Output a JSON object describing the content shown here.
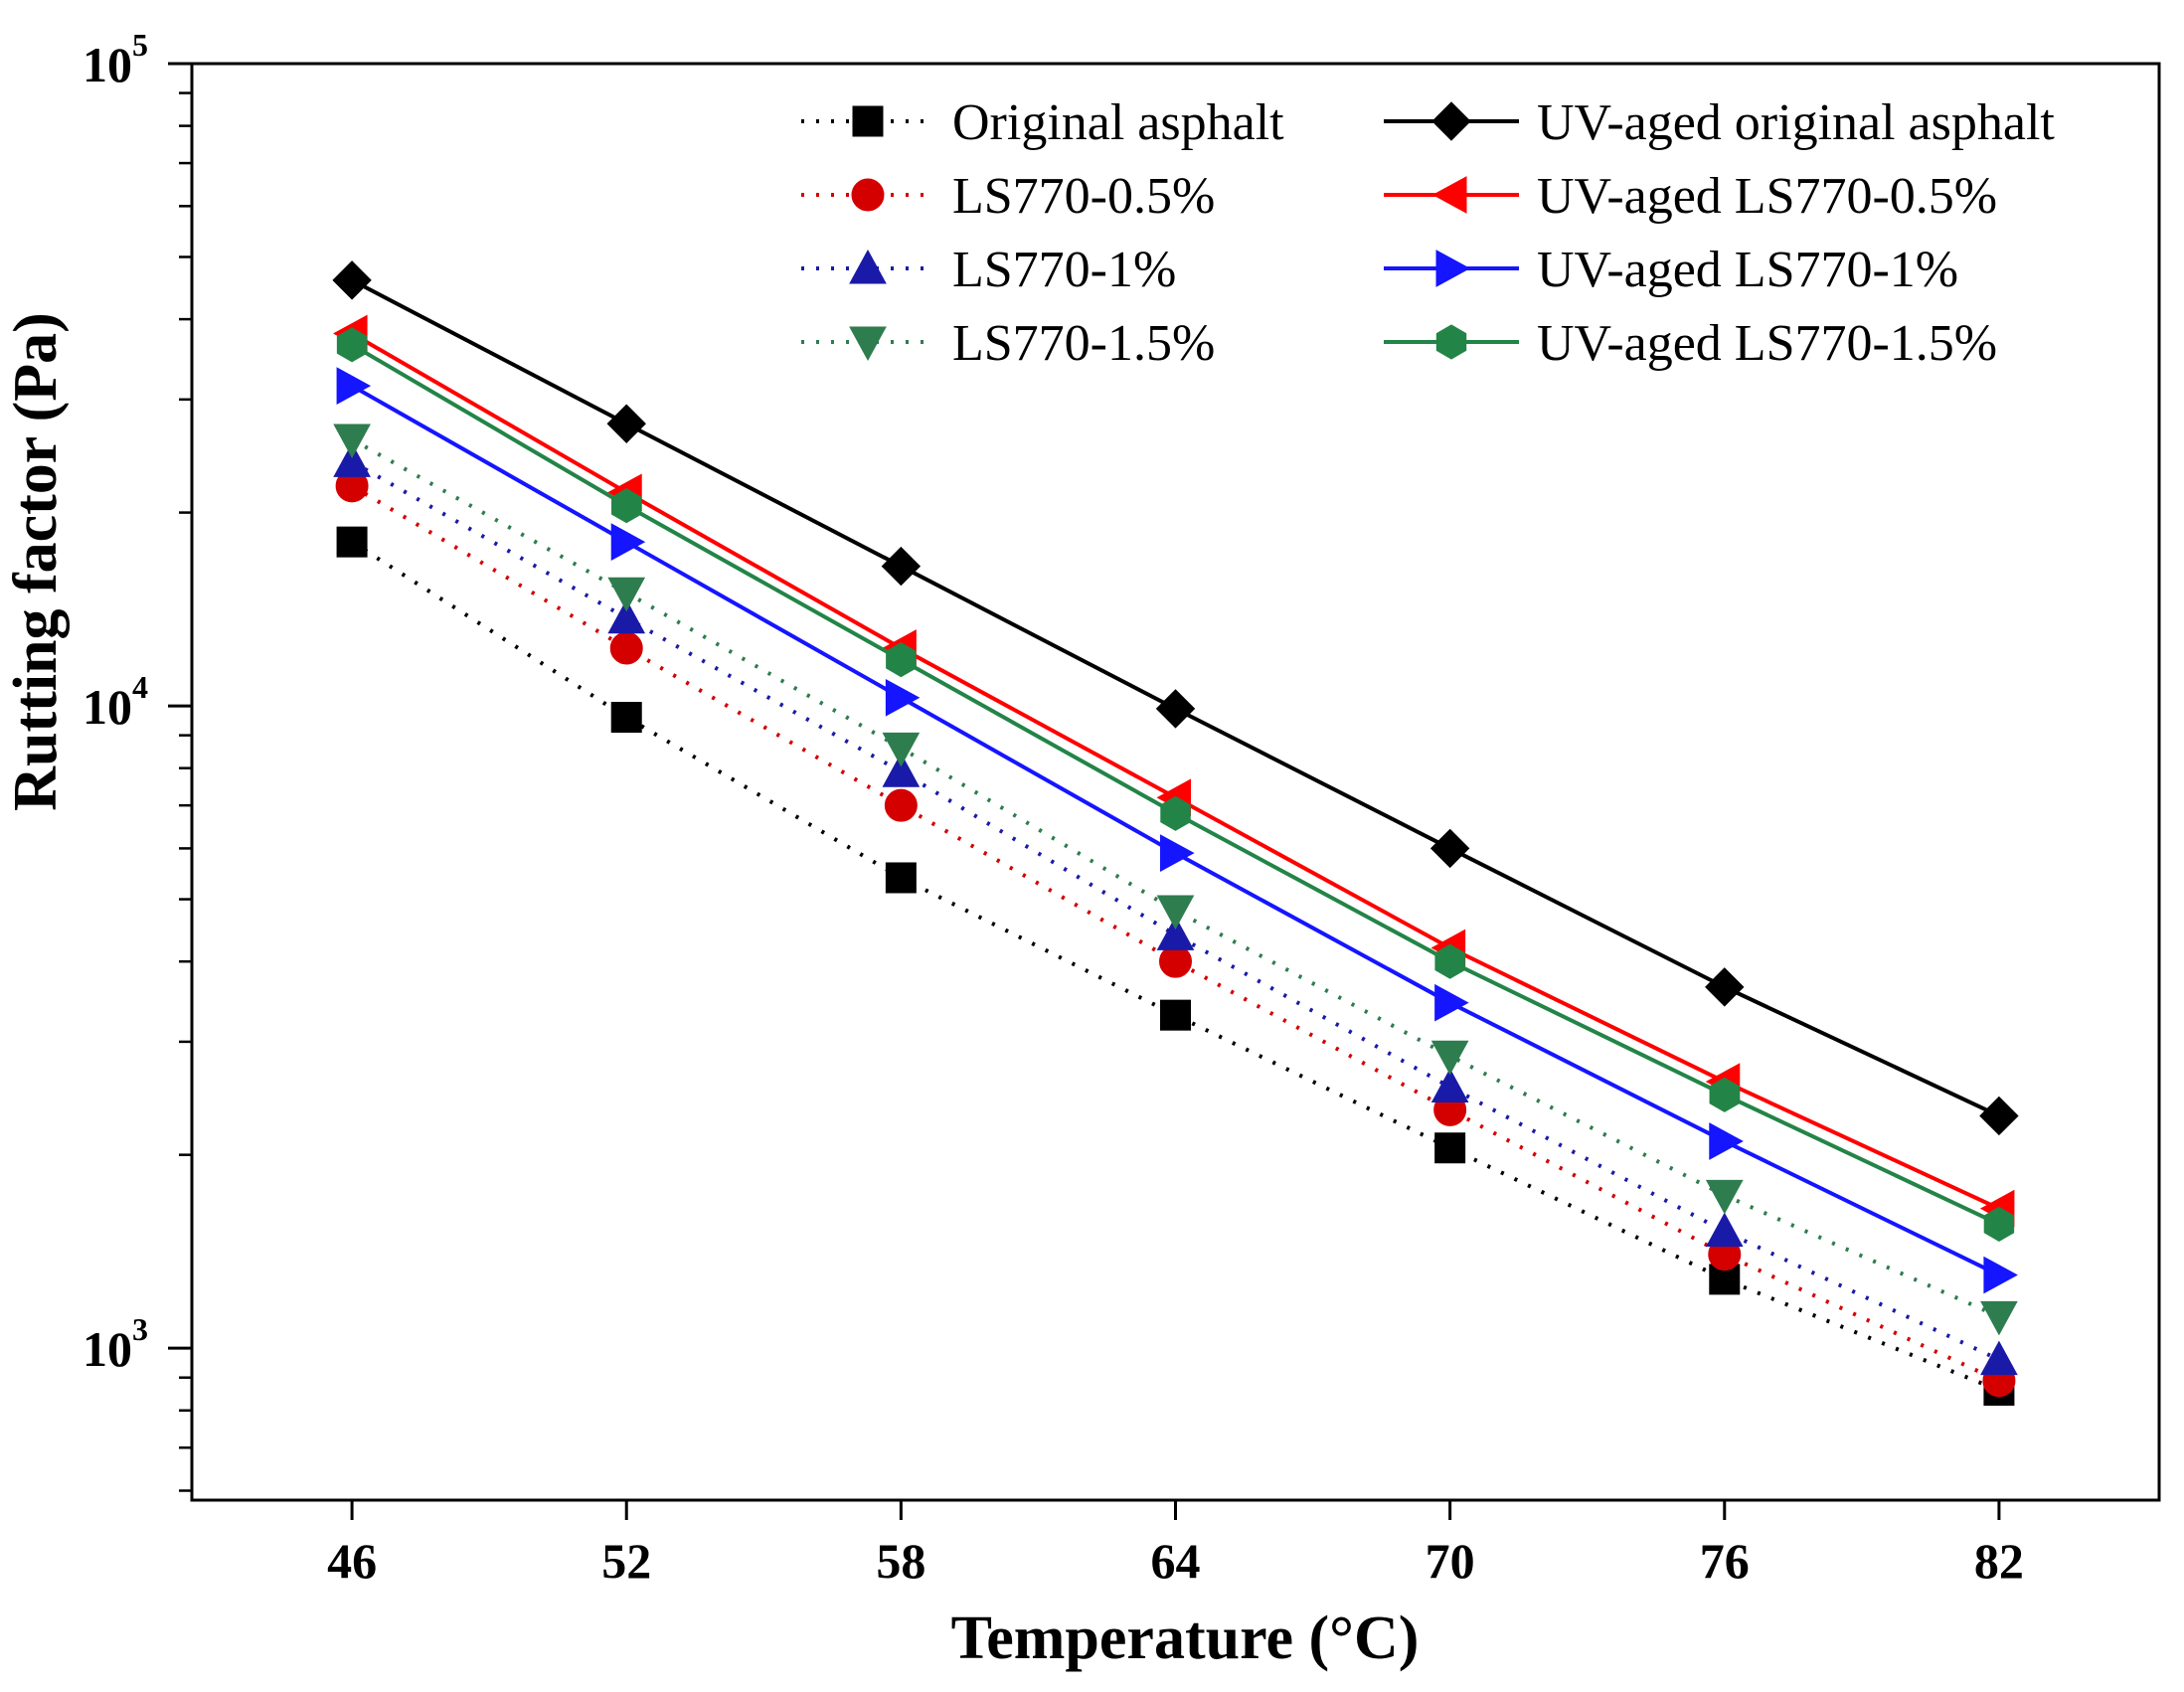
{
  "chart_data": {
    "type": "line",
    "title": "",
    "xlabel": "Temperature (°C)",
    "ylabel": "Rutting factor (Pa)",
    "x": [
      46,
      52,
      58,
      64,
      70,
      76,
      82
    ],
    "x_tick_labels": [
      "46",
      "52",
      "58",
      "64",
      "70",
      "76",
      "82"
    ],
    "xlim": [
      42.5,
      85.5
    ],
    "yscale": "log",
    "ylim": [
      580,
      100000
    ],
    "y_ticks": [
      {
        "value": 1000,
        "base": "10",
        "exp": "3"
      },
      {
        "value": 10000,
        "base": "10",
        "exp": "4"
      },
      {
        "value": 100000,
        "base": "10",
        "exp": "5"
      }
    ],
    "grid": false,
    "legend_position": "top-right",
    "series": [
      {
        "name": "Original asphalt",
        "color": "#000000",
        "line_style": "dotted",
        "marker": "square",
        "values": [
          18000,
          9600,
          5400,
          3300,
          2050,
          1280,
          860
        ]
      },
      {
        "name": "UV-aged original asphalt",
        "color": "#000000",
        "line_style": "solid",
        "marker": "diamond",
        "values": [
          46000,
          27500,
          16500,
          9900,
          6000,
          3650,
          2300
        ]
      },
      {
        "name": "LS770-0.5%",
        "color": "#d40000",
        "line_style": "dotted",
        "marker": "circle",
        "values": [
          22000,
          12300,
          7000,
          4000,
          2350,
          1400,
          890
        ]
      },
      {
        "name": "UV-aged LS770-0.5%",
        "color": "#ff0000",
        "line_style": "solid",
        "marker": "triangle-left",
        "values": [
          38000,
          21500,
          12300,
          7200,
          4200,
          2600,
          1650
        ]
      },
      {
        "name": "LS770-1%",
        "color": "#1a1aa8",
        "line_style": "dotted",
        "marker": "triangle-up",
        "values": [
          24000,
          13700,
          7900,
          4400,
          2550,
          1520,
          960
        ]
      },
      {
        "name": "UV-aged LS770-1%",
        "color": "#1515ff",
        "line_style": "solid",
        "marker": "triangle-right",
        "values": [
          31500,
          18000,
          10300,
          5900,
          3450,
          2100,
          1300
        ]
      },
      {
        "name": "LS770-1.5%",
        "color": "#2e7d4f",
        "line_style": "dotted",
        "marker": "triangle-down",
        "values": [
          26000,
          15000,
          8600,
          4800,
          2850,
          1730,
          1120
        ]
      },
      {
        "name": "UV-aged LS770-1.5%",
        "color": "#238447",
        "line_style": "solid",
        "marker": "hexagon",
        "values": [
          36500,
          20500,
          11800,
          6800,
          4000,
          2480,
          1560
        ]
      }
    ],
    "legend_left_column": [
      "Original asphalt",
      "LS770-0.5%",
      "LS770-1%",
      "LS770-1.5%"
    ],
    "legend_right_column": [
      "UV-aged original asphalt",
      "UV-aged LS770-0.5%",
      "UV-aged LS770-1%",
      "UV-aged LS770-1.5%"
    ]
  }
}
